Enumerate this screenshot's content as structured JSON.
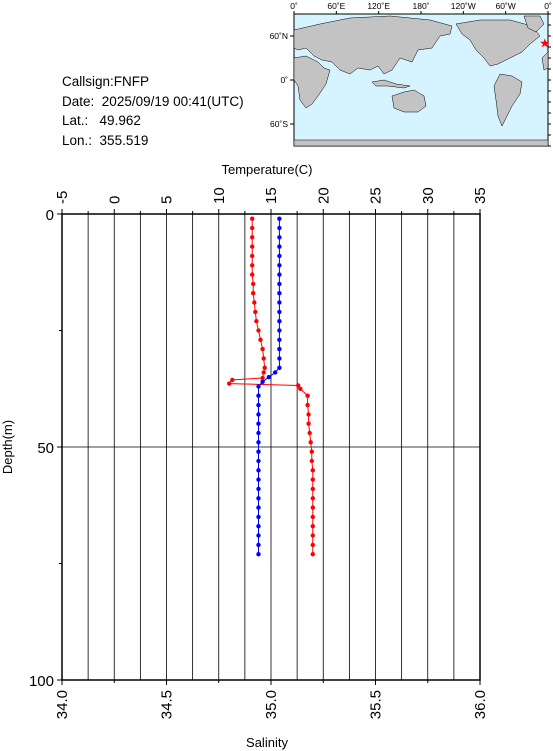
{
  "info": {
    "callsign_label": "Callsign:",
    "callsign": "FNFP",
    "date_label": "Date:",
    "date": "2025/09/19 00:41(UTC)",
    "lat_label": "Lat.:",
    "lat": "49.962",
    "lon_label": "Lon.:",
    "lon": "355.519"
  },
  "map": {
    "lon_ticks": [
      "0˚",
      "60˚E",
      "120˚E",
      "180˚",
      "120˚W",
      "60˚W",
      "0˚"
    ],
    "lat_ticks": [
      "60˚N",
      "0˚",
      "60˚S"
    ],
    "ocean_color": "#d6f4ff",
    "land_color": "#c3c3c3",
    "marker_color": "#ff0000",
    "marker": {
      "lat": 49.962,
      "lon": 355.519
    }
  },
  "chart_data": {
    "type": "line",
    "title": "",
    "top_axis_label": "Temperature(C)",
    "bottom_axis_label": "Salinity",
    "left_axis_label": "Depth(m)",
    "temperature_range": [
      -5,
      35
    ],
    "temperature_ticks": [
      "-5",
      "0",
      "5",
      "10",
      "15",
      "20",
      "25",
      "30",
      "35"
    ],
    "salinity_range": [
      34.0,
      36.0
    ],
    "salinity_ticks": [
      "34.0",
      "34.5",
      "35.0",
      "35.5",
      "36.0"
    ],
    "depth_range": [
      0,
      100
    ],
    "depth_ticks": [
      "0",
      "50",
      "100"
    ],
    "grid": true,
    "series": [
      {
        "variable": "temperature",
        "color": "#ff0000",
        "points": [
          [
            13.2,
            1
          ],
          [
            13.2,
            3
          ],
          [
            13.2,
            5
          ],
          [
            13.2,
            7
          ],
          [
            13.2,
            9
          ],
          [
            13.2,
            11
          ],
          [
            13.2,
            13
          ],
          [
            13.3,
            15
          ],
          [
            13.3,
            17
          ],
          [
            13.4,
            19
          ],
          [
            13.5,
            21
          ],
          [
            13.6,
            23
          ],
          [
            13.8,
            25
          ],
          [
            14.0,
            27
          ],
          [
            14.2,
            29
          ],
          [
            14.3,
            31
          ],
          [
            14.4,
            33
          ],
          [
            14.3,
            34
          ],
          [
            14.2,
            35.2
          ],
          [
            11.3,
            35.6
          ],
          [
            11.0,
            36.4
          ],
          [
            17.6,
            36.8
          ],
          [
            17.8,
            37.5
          ],
          [
            18.5,
            39
          ],
          [
            18.5,
            41
          ],
          [
            18.6,
            43
          ],
          [
            18.6,
            45
          ],
          [
            18.7,
            47
          ],
          [
            18.8,
            49
          ],
          [
            18.9,
            51
          ],
          [
            18.9,
            53
          ],
          [
            19.0,
            55
          ],
          [
            19.0,
            57
          ],
          [
            19.0,
            59
          ],
          [
            19.0,
            61
          ],
          [
            19.0,
            63
          ],
          [
            19.0,
            65
          ],
          [
            19.0,
            67
          ],
          [
            19.0,
            69
          ],
          [
            19.0,
            71
          ],
          [
            19.0,
            73
          ]
        ]
      },
      {
        "variable": "salinity",
        "color": "#0000ff",
        "points": [
          [
            35.04,
            1
          ],
          [
            35.04,
            3
          ],
          [
            35.04,
            5
          ],
          [
            35.04,
            7
          ],
          [
            35.04,
            9
          ],
          [
            35.04,
            11
          ],
          [
            35.04,
            13
          ],
          [
            35.04,
            15
          ],
          [
            35.04,
            17
          ],
          [
            35.04,
            19
          ],
          [
            35.04,
            21
          ],
          [
            35.04,
            23
          ],
          [
            35.04,
            25
          ],
          [
            35.04,
            27
          ],
          [
            35.04,
            29
          ],
          [
            35.04,
            31
          ],
          [
            35.04,
            33
          ],
          [
            35.02,
            34
          ],
          [
            34.99,
            35
          ],
          [
            34.96,
            36
          ],
          [
            34.94,
            37
          ],
          [
            34.94,
            39
          ],
          [
            34.94,
            41
          ],
          [
            34.94,
            43
          ],
          [
            34.94,
            45
          ],
          [
            34.94,
            47
          ],
          [
            34.94,
            49
          ],
          [
            34.94,
            51
          ],
          [
            34.94,
            53
          ],
          [
            34.94,
            55
          ],
          [
            34.94,
            57
          ],
          [
            34.94,
            59
          ],
          [
            34.94,
            61
          ],
          [
            34.94,
            63
          ],
          [
            34.94,
            65
          ],
          [
            34.94,
            67
          ],
          [
            34.94,
            69
          ],
          [
            34.94,
            71
          ],
          [
            34.94,
            73
          ]
        ]
      }
    ]
  }
}
